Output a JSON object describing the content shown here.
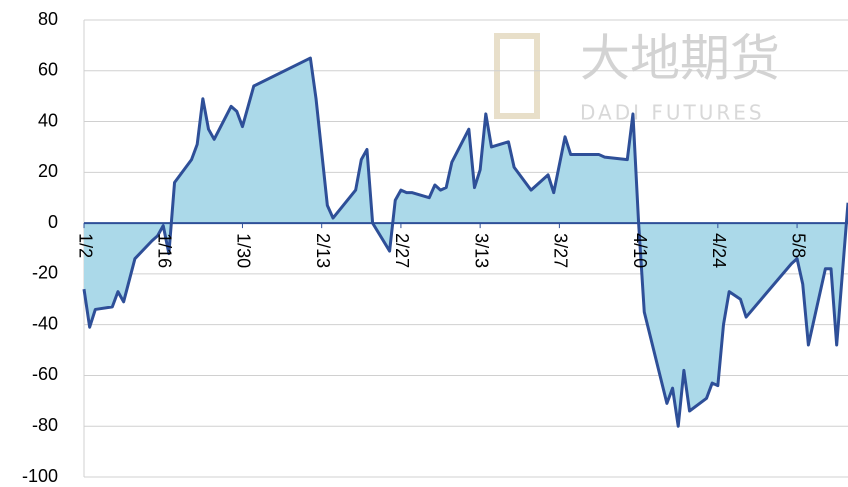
{
  "chart_data": {
    "type": "area",
    "watermark": {
      "title": "大地期货",
      "subtitle": "DADI FUTURES"
    },
    "series": [
      {
        "color": "#2e4f98",
        "fill": "#abd9e9",
        "x": [
          0,
          1,
          2,
          5,
          6,
          7,
          9,
          12,
          13,
          14,
          15,
          16,
          19,
          20,
          21,
          22,
          23,
          26,
          27,
          28,
          30,
          40,
          41,
          43,
          44,
          48,
          49,
          50,
          51,
          54,
          55,
          56,
          57,
          58,
          61,
          62,
          63,
          64,
          65,
          68,
          69,
          70,
          71,
          72,
          75,
          76,
          77,
          79,
          82,
          83,
          85,
          86,
          91,
          92,
          96,
          97,
          98,
          99,
          103,
          104,
          105,
          106,
          107,
          110,
          111,
          112,
          113,
          114,
          116,
          117,
          125,
          126,
          127,
          128,
          131,
          132,
          133,
          135
        ],
        "values": [
          -26,
          -41,
          -34,
          -33,
          -27,
          -31,
          -14,
          -7,
          -5,
          -1,
          -12,
          16,
          25,
          31,
          49,
          37,
          33,
          46,
          44,
          38,
          54,
          65,
          49,
          7,
          2,
          13,
          25,
          29,
          0,
          -11,
          9,
          13,
          12,
          12,
          10,
          15,
          13,
          14,
          24,
          37,
          14,
          21,
          43,
          30,
          32,
          22,
          19,
          13,
          19,
          12,
          34,
          27,
          27,
          26,
          25,
          43,
          0,
          -35,
          -71,
          -65,
          -80,
          -58,
          -74,
          -69,
          -63,
          -64,
          -40,
          -27,
          -30,
          -37,
          -16,
          -14,
          -24,
          -48,
          -18,
          -18,
          -48,
          8
        ]
      }
    ],
    "xlim": [
      0,
      135
    ],
    "xticks": [
      {
        "value": 0,
        "label": "1/2"
      },
      {
        "value": 14,
        "label": "1/16"
      },
      {
        "value": 28,
        "label": "1/30"
      },
      {
        "value": 42,
        "label": "2/13"
      },
      {
        "value": 56,
        "label": "2/27"
      },
      {
        "value": 70,
        "label": "3/13"
      },
      {
        "value": 84,
        "label": "3/27"
      },
      {
        "value": 98,
        "label": "4/10"
      },
      {
        "value": 112,
        "label": "4/24"
      },
      {
        "value": 126,
        "label": "5/8"
      }
    ],
    "ylim": [
      -100,
      80
    ],
    "yticks": [
      -100,
      -80,
      -60,
      -40,
      -20,
      0,
      20,
      40,
      60,
      80
    ],
    "grid": true
  }
}
